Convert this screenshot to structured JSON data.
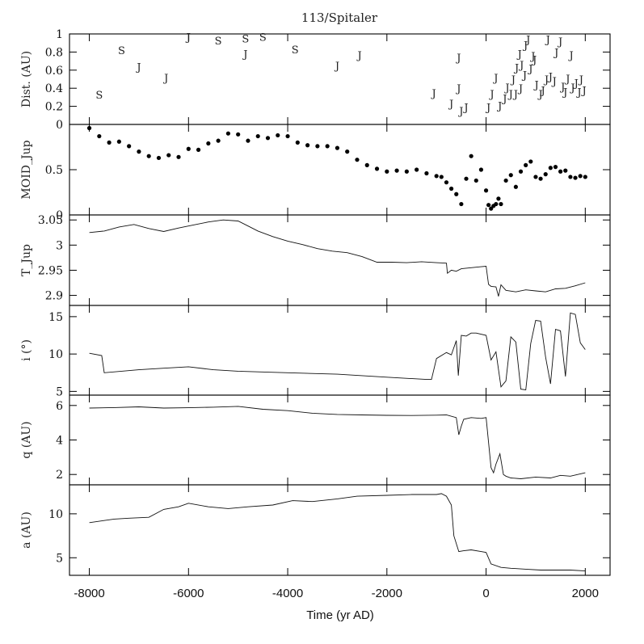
{
  "chart_data": {
    "type": "multi-panel",
    "title": "113/Spitaler",
    "xlabel": "Time (yr AD)",
    "xlim": [
      -8400,
      2500
    ],
    "xticks": [
      -8000,
      -6000,
      -4000,
      -2000,
      0,
      2000
    ],
    "xtick_labels": [
      "-8000",
      "-6000",
      "-4000",
      "-2000",
      "0",
      "2000"
    ],
    "panels": [
      {
        "name": "encounters",
        "type": "scatter-text",
        "ylabel": "Dist. (AU)",
        "ylim": [
          0,
          1
        ],
        "yticks": [
          0,
          0.2,
          0.4,
          0.6,
          0.8,
          1
        ],
        "ytick_labels": [
          "0",
          "0.2",
          "0.4",
          "0.6",
          "0.8",
          "1"
        ],
        "points": [
          {
            "x": -7800,
            "y": 0.33,
            "label": "S"
          },
          {
            "x": -7350,
            "y": 0.82,
            "label": "S"
          },
          {
            "x": -7000,
            "y": 0.64,
            "label": "J"
          },
          {
            "x": -6450,
            "y": 0.52,
            "label": "J"
          },
          {
            "x": -6000,
            "y": 0.97,
            "label": "J"
          },
          {
            "x": -5400,
            "y": 0.93,
            "label": "S"
          },
          {
            "x": -4850,
            "y": 0.95,
            "label": "S"
          },
          {
            "x": -4850,
            "y": 0.78,
            "label": "J"
          },
          {
            "x": -4500,
            "y": 0.97,
            "label": "S"
          },
          {
            "x": -3850,
            "y": 0.83,
            "label": "S"
          },
          {
            "x": -3000,
            "y": 0.65,
            "label": "J"
          },
          {
            "x": -2550,
            "y": 0.77,
            "label": "J"
          },
          {
            "x": -1050,
            "y": 0.35,
            "label": "J"
          },
          {
            "x": -700,
            "y": 0.23,
            "label": "J"
          },
          {
            "x": -550,
            "y": 0.74,
            "label": "J"
          },
          {
            "x": -550,
            "y": 0.4,
            "label": "J"
          },
          {
            "x": -500,
            "y": 0.15,
            "label": "J"
          },
          {
            "x": -400,
            "y": 0.19,
            "label": "J"
          },
          {
            "x": 50,
            "y": 0.19,
            "label": "J"
          },
          {
            "x": 120,
            "y": 0.34,
            "label": "J"
          },
          {
            "x": 200,
            "y": 0.52,
            "label": "J"
          },
          {
            "x": 280,
            "y": 0.21,
            "label": "J"
          },
          {
            "x": 380,
            "y": 0.29,
            "label": "J"
          },
          {
            "x": 430,
            "y": 0.41,
            "label": "J"
          },
          {
            "x": 500,
            "y": 0.34,
            "label": "J"
          },
          {
            "x": 550,
            "y": 0.5,
            "label": "J"
          },
          {
            "x": 600,
            "y": 0.34,
            "label": "J"
          },
          {
            "x": 620,
            "y": 0.63,
            "label": "J"
          },
          {
            "x": 680,
            "y": 0.78,
            "label": "J"
          },
          {
            "x": 700,
            "y": 0.4,
            "label": "J"
          },
          {
            "x": 720,
            "y": 0.66,
            "label": "J"
          },
          {
            "x": 780,
            "y": 0.55,
            "label": "J"
          },
          {
            "x": 800,
            "y": 0.88,
            "label": "J"
          },
          {
            "x": 850,
            "y": 0.94,
            "label": "J"
          },
          {
            "x": 900,
            "y": 0.62,
            "label": "J"
          },
          {
            "x": 950,
            "y": 0.76,
            "label": "J"
          },
          {
            "x": 980,
            "y": 0.72,
            "label": "J"
          },
          {
            "x": 1020,
            "y": 0.44,
            "label": "J"
          },
          {
            "x": 1100,
            "y": 0.34,
            "label": "J"
          },
          {
            "x": 1150,
            "y": 0.38,
            "label": "J"
          },
          {
            "x": 1220,
            "y": 0.5,
            "label": "J"
          },
          {
            "x": 1250,
            "y": 0.94,
            "label": "J"
          },
          {
            "x": 1300,
            "y": 0.53,
            "label": "J"
          },
          {
            "x": 1380,
            "y": 0.48,
            "label": "J"
          },
          {
            "x": 1420,
            "y": 0.8,
            "label": "J"
          },
          {
            "x": 1500,
            "y": 0.92,
            "label": "J"
          },
          {
            "x": 1550,
            "y": 0.42,
            "label": "J"
          },
          {
            "x": 1600,
            "y": 0.36,
            "label": "J"
          },
          {
            "x": 1650,
            "y": 0.51,
            "label": "J"
          },
          {
            "x": 1720,
            "y": 0.77,
            "label": "J"
          },
          {
            "x": 1750,
            "y": 0.41,
            "label": "J"
          },
          {
            "x": 1820,
            "y": 0.46,
            "label": "J"
          },
          {
            "x": 1880,
            "y": 0.36,
            "label": "J"
          },
          {
            "x": 1920,
            "y": 0.5,
            "label": "J"
          },
          {
            "x": 1980,
            "y": 0.38,
            "label": "J"
          }
        ]
      },
      {
        "name": "moid",
        "type": "scatter",
        "ylabel": "MOID_Jup",
        "ylim": [
          0,
          1.0
        ],
        "yticks": [
          0,
          0.5
        ],
        "ytick_labels": [
          "0",
          "0.5"
        ],
        "x": [
          -8000,
          -7800,
          -7600,
          -7400,
          -7200,
          -7000,
          -6800,
          -6600,
          -6400,
          -6200,
          -6000,
          -5800,
          -5600,
          -5400,
          -5200,
          -5000,
          -4800,
          -4600,
          -4400,
          -4200,
          -4000,
          -3800,
          -3600,
          -3400,
          -3200,
          -3000,
          -2800,
          -2600,
          -2400,
          -2200,
          -2000,
          -1800,
          -1600,
          -1400,
          -1200,
          -1000,
          -900,
          -800,
          -700,
          -600,
          -500,
          -400,
          -300,
          -200,
          -100,
          0,
          50,
          100,
          150,
          200,
          250,
          300,
          400,
          500,
          600,
          700,
          800,
          900,
          1000,
          1100,
          1200,
          1300,
          1400,
          1500,
          1600,
          1700,
          1800,
          1900,
          2000
        ],
        "y": [
          0.96,
          0.87,
          0.8,
          0.81,
          0.76,
          0.7,
          0.65,
          0.63,
          0.66,
          0.64,
          0.73,
          0.72,
          0.79,
          0.82,
          0.9,
          0.89,
          0.82,
          0.87,
          0.85,
          0.88,
          0.87,
          0.8,
          0.77,
          0.76,
          0.76,
          0.74,
          0.7,
          0.61,
          0.55,
          0.51,
          0.48,
          0.49,
          0.48,
          0.5,
          0.46,
          0.43,
          0.42,
          0.36,
          0.29,
          0.23,
          0.12,
          0.4,
          0.65,
          0.38,
          0.5,
          0.27,
          0.11,
          0.07,
          0.1,
          0.12,
          0.18,
          0.12,
          0.38,
          0.44,
          0.31,
          0.48,
          0.55,
          0.59,
          0.42,
          0.4,
          0.45,
          0.52,
          0.53,
          0.48,
          0.49,
          0.42,
          0.41,
          0.43,
          0.42
        ]
      },
      {
        "name": "tjup",
        "type": "line",
        "ylabel": "T_Jup",
        "ylim": [
          2.88,
          3.06
        ],
        "yticks": [
          2.9,
          2.95,
          3,
          3.05
        ],
        "ytick_labels": [
          "2.9",
          "2.95",
          "3",
          "3.05"
        ],
        "x": [
          -8000,
          -7700,
          -7400,
          -7100,
          -6800,
          -6500,
          -6200,
          -5900,
          -5600,
          -5300,
          -5000,
          -4800,
          -4600,
          -4300,
          -4000,
          -3700,
          -3400,
          -3100,
          -2800,
          -2500,
          -2200,
          -1900,
          -1600,
          -1300,
          -1000,
          -800,
          -780,
          -700,
          -600,
          -500,
          -300,
          -100,
          0,
          50,
          100,
          200,
          250,
          300,
          400,
          600,
          800,
          1000,
          1200,
          1400,
          1600,
          1800,
          2000
        ],
        "y": [
          3.025,
          3.028,
          3.036,
          3.041,
          3.033,
          3.027,
          3.034,
          3.04,
          3.046,
          3.05,
          3.048,
          3.038,
          3.028,
          3.017,
          3.008,
          3.001,
          2.993,
          2.988,
          2.985,
          2.977,
          2.966,
          2.966,
          2.965,
          2.967,
          2.965,
          2.964,
          2.944,
          2.95,
          2.948,
          2.953,
          2.955,
          2.957,
          2.958,
          2.922,
          2.918,
          2.917,
          2.898,
          2.921,
          2.91,
          2.907,
          2.911,
          2.909,
          2.907,
          2.913,
          2.914,
          2.919,
          2.925
        ]
      },
      {
        "name": "inclination",
        "type": "line",
        "ylabel": "i (°)",
        "ylim": [
          4.5,
          16.5
        ],
        "yticks": [
          5,
          10,
          15
        ],
        "ytick_labels": [
          "5",
          "10",
          "15"
        ],
        "x": [
          -8000,
          -7750,
          -7700,
          -7000,
          -6500,
          -6000,
          -5500,
          -5000,
          -4000,
          -3000,
          -2000,
          -1200,
          -1100,
          -1000,
          -800,
          -700,
          -600,
          -560,
          -500,
          -400,
          -300,
          -200,
          0,
          100,
          200,
          300,
          400,
          500,
          600,
          700,
          800,
          900,
          1000,
          1100,
          1200,
          1300,
          1400,
          1500,
          1600,
          1700,
          1800,
          1900,
          2000
        ],
        "y": [
          10.1,
          9.8,
          7.5,
          7.9,
          8.1,
          8.3,
          7.9,
          7.7,
          7.5,
          7.3,
          6.9,
          6.6,
          6.6,
          9.4,
          10.2,
          9.9,
          11.8,
          7.1,
          12.5,
          12.4,
          12.8,
          12.8,
          12.5,
          9.2,
          10.3,
          5.6,
          6.4,
          12.3,
          11.6,
          5.3,
          5.2,
          11.4,
          14.5,
          14.4,
          9.6,
          6.0,
          13.3,
          13.1,
          7.0,
          15.5,
          15.3,
          11.5,
          10.6
        ]
      },
      {
        "name": "perihelion",
        "type": "line",
        "ylabel": "q (AU)",
        "ylim": [
          1.4,
          6.6
        ],
        "yticks": [
          2,
          4,
          6
        ],
        "ytick_labels": [
          "2",
          "4",
          "6"
        ],
        "x": [
          -8000,
          -7500,
          -7000,
          -6500,
          -6000,
          -5500,
          -5000,
          -4500,
          -4000,
          -3500,
          -3000,
          -2500,
          -2000,
          -1500,
          -1000,
          -800,
          -600,
          -550,
          -500,
          -450,
          -300,
          -100,
          0,
          100,
          150,
          200,
          280,
          350,
          400,
          500,
          700,
          1000,
          1300,
          1500,
          1700,
          2000
        ],
        "y": [
          5.85,
          5.88,
          5.92,
          5.85,
          5.87,
          5.9,
          5.95,
          5.78,
          5.7,
          5.55,
          5.48,
          5.45,
          5.43,
          5.42,
          5.44,
          5.45,
          5.3,
          4.3,
          4.8,
          5.2,
          5.3,
          5.25,
          5.3,
          2.4,
          2.1,
          2.6,
          3.2,
          2.0,
          1.9,
          1.8,
          1.75,
          1.85,
          1.8,
          1.95,
          1.9,
          2.1
        ]
      },
      {
        "name": "semimajor",
        "type": "line",
        "ylabel": "a (AU)",
        "ylim": [
          3,
          13.3
        ],
        "yticks": [
          5,
          10
        ],
        "ytick_labels": [
          "5",
          "10"
        ],
        "x": [
          -8000,
          -7500,
          -7200,
          -6800,
          -6500,
          -6200,
          -6000,
          -5600,
          -5200,
          -4800,
          -4300,
          -3900,
          -3500,
          -3000,
          -2600,
          -2000,
          -1500,
          -1000,
          -900,
          -800,
          -700,
          -650,
          -550,
          -450,
          -300,
          -100,
          0,
          100,
          300,
          500,
          800,
          1100,
          1400,
          1700,
          2000
        ],
        "y": [
          9.0,
          9.4,
          9.5,
          9.6,
          10.5,
          10.8,
          11.2,
          10.8,
          10.6,
          10.8,
          11.0,
          11.5,
          11.4,
          11.7,
          12.0,
          12.1,
          12.2,
          12.2,
          12.3,
          12.0,
          11.0,
          7.5,
          5.7,
          5.8,
          5.9,
          5.7,
          5.6,
          4.3,
          3.9,
          3.8,
          3.7,
          3.6,
          3.6,
          3.6,
          3.5
        ]
      }
    ]
  }
}
